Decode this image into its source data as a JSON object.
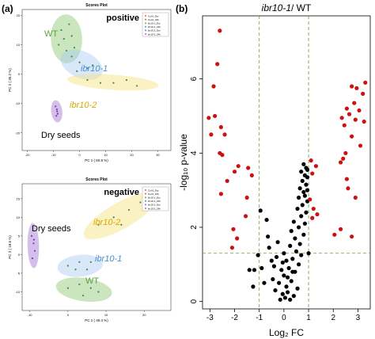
{
  "figure": {
    "panel_a_label": "(a)",
    "panel_b_label": "(b)"
  },
  "chart_data": [
    {
      "type": "scatter",
      "title": "Scores Plot",
      "corner_label": "positive",
      "xlabel": "PC 1 ( 50.8 %)",
      "ylabel": "PC 2 ( 35.2 %)",
      "xlim": [
        -22,
        35
      ],
      "ylim": [
        -26,
        22
      ],
      "x_ticks": [
        -20,
        -10,
        0,
        10,
        20,
        30
      ],
      "y_ticks": [
        -20,
        -10,
        0,
        10,
        20
      ],
      "legend": [
        "Col-0_Dry",
        "Col-0_24h",
        "ibr10-1_Dry",
        "ibr10-1_24h",
        "ibr10-2_Dry",
        "ibr10-2_24h"
      ],
      "legend_position": "top-right",
      "groups": [
        {
          "label": "WT",
          "color": "#5aa040",
          "fill": "#8cc872",
          "points": [
            [
              -7,
              15
            ],
            [
              -4,
              17
            ],
            [
              -6,
              12
            ],
            [
              -3,
              13
            ],
            [
              -8,
              10
            ],
            [
              -5,
              8
            ],
            [
              -2,
              9
            ]
          ]
        },
        {
          "label": "ibr10-1",
          "color": "#4a8ed0",
          "fill": "#aacdf0",
          "points": [
            [
              -3,
              6
            ],
            [
              0,
              4
            ],
            [
              3,
              2
            ],
            [
              -1,
              1
            ],
            [
              5,
              3
            ]
          ]
        },
        {
          "label": "ibr10-2",
          "color": "#d8a800",
          "fill": "#f6e27a",
          "points": [
            [
              3,
              -2
            ],
            [
              8,
              -3
            ],
            [
              13,
              -3
            ],
            [
              18,
              -2
            ],
            [
              22,
              -4
            ]
          ]
        },
        {
          "label": "Dry seeds",
          "color": "#000000",
          "fill": "#a070d0",
          "points": [
            [
              -9.2,
              -11
            ],
            [
              -8.7,
              -12
            ],
            [
              -8.4,
              -13.5
            ],
            [
              -8.9,
              -14.2
            ],
            [
              -8.6,
              -12.7
            ]
          ]
        }
      ]
    },
    {
      "type": "scatter",
      "title": "Scores Plot",
      "corner_label": "negative",
      "xlabel": "PC 1 ( 46.4 %)",
      "ylabel": "PC 2 ( 18.6 %)",
      "xlim": [
        -12,
        27
      ],
      "ylim": [
        -15,
        19
      ],
      "x_ticks": [
        -10,
        0,
        10,
        20
      ],
      "y_ticks": [
        -10,
        -5,
        0,
        5,
        10,
        15
      ],
      "legend": [
        "Col-0_Dry",
        "Col-0_24h",
        "ibr10-1_Dry",
        "ibr10-1_24h",
        "ibr10-2_Dry",
        "ibr10-2_24h"
      ],
      "legend_position": "top-right",
      "groups": [
        {
          "label": "WT",
          "color": "#5aa040",
          "fill": "#8cc872",
          "points": [
            [
              0,
              -9
            ],
            [
              3,
              -8
            ],
            [
              6,
              -9
            ],
            [
              8,
              -10
            ],
            [
              4,
              -11
            ]
          ]
        },
        {
          "label": "ibr10-1",
          "color": "#4a8ed0",
          "fill": "#aacdf0",
          "points": [
            [
              0,
              -3
            ],
            [
              3,
              -2
            ],
            [
              5,
              -4
            ],
            [
              2,
              -4
            ],
            [
              6,
              -2
            ]
          ]
        },
        {
          "label": "ibr10-2",
          "color": "#d8a800",
          "fill": "#f6e27a",
          "points": [
            [
              8,
              8
            ],
            [
              12,
              10
            ],
            [
              16,
              12
            ],
            [
              19,
              14
            ],
            [
              14,
              8
            ]
          ]
        },
        {
          "label": "Dry seeds",
          "color": "#000000",
          "fill": "#a070d0",
          "points": [
            [
              -9.5,
              5
            ],
            [
              -9,
              3
            ],
            [
              -8.7,
              1
            ],
            [
              -9.3,
              -1
            ],
            [
              -8.9,
              4
            ]
          ]
        }
      ]
    },
    {
      "type": "scatter",
      "title_italic": "ibr10-1",
      "title_rest": "/ WT",
      "xlabel": "Log₂ FC",
      "ylabel": "-log₁₀ p-value",
      "xlim": [
        -3.3,
        3.5
      ],
      "ylim": [
        -0.2,
        7.7
      ],
      "x_ticks": [
        -3,
        -2,
        -1,
        0,
        1,
        2,
        3
      ],
      "y_ticks": [
        0,
        2,
        4,
        6
      ],
      "fc_threshold": 1,
      "p_threshold_line": 1.3,
      "colors": {
        "significant": "#cc1111",
        "not_significant": "#000000",
        "threshold": "#6a9a3a"
      },
      "significant_points": [
        [
          -2.6,
          7.3
        ],
        [
          -2.7,
          6.4
        ],
        [
          -2.85,
          5.8
        ],
        [
          -2.8,
          5.0
        ],
        [
          -3.05,
          4.95
        ],
        [
          -2.55,
          4.7
        ],
        [
          -2.4,
          4.5
        ],
        [
          -2.95,
          4.5
        ],
        [
          -2.6,
          4.0
        ],
        [
          -2.5,
          3.95
        ],
        [
          -1.85,
          3.65
        ],
        [
          -1.45,
          3.6
        ],
        [
          -2.0,
          3.5
        ],
        [
          -1.3,
          3.4
        ],
        [
          -2.3,
          3.25
        ],
        [
          -2.55,
          2.9
        ],
        [
          -1.5,
          2.8
        ],
        [
          -1.55,
          2.3
        ],
        [
          -2.05,
          1.95
        ],
        [
          -1.9,
          1.7
        ],
        [
          -2.1,
          1.45
        ],
        [
          3.3,
          5.9
        ],
        [
          2.75,
          5.8
        ],
        [
          2.95,
          5.75
        ],
        [
          3.2,
          5.6
        ],
        [
          2.85,
          5.35
        ],
        [
          2.55,
          5.2
        ],
        [
          3.05,
          5.15
        ],
        [
          2.65,
          5.05
        ],
        [
          2.9,
          4.9
        ],
        [
          2.35,
          4.95
        ],
        [
          3.25,
          4.85
        ],
        [
          2.45,
          4.75
        ],
        [
          2.75,
          4.45
        ],
        [
          3.1,
          4.2
        ],
        [
          2.5,
          4.0
        ],
        [
          2.4,
          3.85
        ],
        [
          2.3,
          3.75
        ],
        [
          1.1,
          3.8
        ],
        [
          1.3,
          3.65
        ],
        [
          1.15,
          3.45
        ],
        [
          2.55,
          3.3
        ],
        [
          2.6,
          3.05
        ],
        [
          2.9,
          2.8
        ],
        [
          1.05,
          2.75
        ],
        [
          1.2,
          2.5
        ],
        [
          1.35,
          2.35
        ],
        [
          1.15,
          2.25
        ],
        [
          2.3,
          1.95
        ],
        [
          2.05,
          1.8
        ],
        [
          2.75,
          1.75
        ]
      ],
      "nonsignificant_points": [
        [
          -0.15,
          0.05
        ],
        [
          0.05,
          0.1
        ],
        [
          0.25,
          0.05
        ],
        [
          -0.05,
          0.2
        ],
        [
          0.15,
          0.25
        ],
        [
          0.4,
          0.15
        ],
        [
          -0.35,
          0.3
        ],
        [
          0.1,
          0.4
        ],
        [
          -0.2,
          0.5
        ],
        [
          0.3,
          0.55
        ],
        [
          0.55,
          0.35
        ],
        [
          0.0,
          0.7
        ],
        [
          -0.1,
          0.85
        ],
        [
          0.2,
          0.9
        ],
        [
          0.45,
          0.8
        ],
        [
          -0.4,
          0.95
        ],
        [
          0.6,
          1.0
        ],
        [
          0.1,
          1.1
        ],
        [
          0.35,
          1.15
        ],
        [
          -0.3,
          1.2
        ],
        [
          0.7,
          1.25
        ],
        [
          0.0,
          1.3
        ],
        [
          0.5,
          1.35
        ],
        [
          -0.5,
          1.1
        ],
        [
          0.25,
          1.5
        ],
        [
          0.65,
          1.55
        ],
        [
          0.45,
          1.7
        ],
        [
          0.8,
          1.8
        ],
        [
          0.3,
          1.9
        ],
        [
          0.6,
          2.0
        ],
        [
          0.85,
          2.1
        ],
        [
          0.4,
          2.15
        ],
        [
          0.7,
          2.3
        ],
        [
          0.9,
          2.4
        ],
        [
          0.55,
          2.5
        ],
        [
          0.75,
          2.6
        ],
        [
          0.95,
          2.7
        ],
        [
          0.6,
          2.8
        ],
        [
          0.8,
          2.95
        ],
        [
          0.65,
          3.05
        ],
        [
          0.9,
          3.15
        ],
        [
          0.75,
          3.25
        ],
        [
          0.85,
          3.4
        ],
        [
          0.7,
          3.5
        ],
        [
          0.9,
          3.6
        ],
        [
          0.95,
          3.35
        ],
        [
          -0.9,
          0.9
        ],
        [
          -0.8,
          0.5
        ],
        [
          -1.05,
          1.25
        ],
        [
          -0.6,
          1.45
        ],
        [
          -0.65,
          1.75
        ],
        [
          -0.7,
          2.2
        ],
        [
          -0.95,
          2.45
        ],
        [
          -1.2,
          0.85
        ],
        [
          -1.4,
          0.85
        ],
        [
          -1.25,
          0.4
        ],
        [
          -0.25,
          1.6
        ],
        [
          -0.05,
          1.05
        ],
        [
          0.15,
          0.65
        ],
        [
          -0.45,
          0.6
        ],
        [
          0.35,
          0.8
        ],
        [
          1.0,
          1.3
        ],
        [
          0.85,
          2.85
        ],
        [
          0.95,
          3.0
        ],
        [
          0.8,
          3.7
        ],
        [
          0.95,
          3.55
        ]
      ]
    }
  ]
}
